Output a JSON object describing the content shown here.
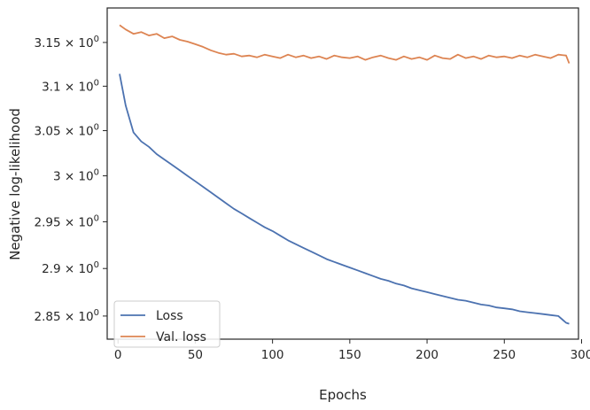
{
  "chart_data": {
    "type": "line",
    "xlabel": "Epochs",
    "ylabel": "Negative log-likelihood",
    "yscale": "log",
    "xlim": [
      -7,
      298
    ],
    "ylim": [
      2.826,
      3.19
    ],
    "grid": false,
    "legend_position": "lower-left",
    "x_ticks": [
      0,
      50,
      100,
      150,
      200,
      250,
      300
    ],
    "x_tick_labels": [
      "0",
      "50",
      "100",
      "150",
      "200",
      "250",
      "300"
    ],
    "y_ticks": [
      2.85,
      2.9,
      2.95,
      3.0,
      3.05,
      3.1,
      3.15
    ],
    "y_tick_mantissas": [
      "2.85",
      "2.9",
      "2.95",
      "3",
      "3.05",
      "3.1",
      "3.15"
    ],
    "y_tick_suffix": "× 10",
    "y_tick_exponent": "0",
    "x": [
      1,
      5,
      10,
      15,
      20,
      25,
      30,
      35,
      40,
      45,
      50,
      55,
      60,
      65,
      70,
      75,
      80,
      85,
      90,
      95,
      100,
      105,
      110,
      115,
      120,
      125,
      130,
      135,
      140,
      145,
      150,
      155,
      160,
      165,
      170,
      175,
      180,
      185,
      190,
      195,
      200,
      205,
      210,
      215,
      220,
      225,
      230,
      235,
      240,
      245,
      250,
      255,
      260,
      265,
      270,
      275,
      280,
      285,
      290,
      292
    ],
    "series": [
      {
        "name": "Loss",
        "color": "#4c72b0",
        "values": [
          3.114,
          3.078,
          3.048,
          3.038,
          3.032,
          3.024,
          3.018,
          3.012,
          3.006,
          3.0,
          2.994,
          2.988,
          2.982,
          2.976,
          2.97,
          2.964,
          2.959,
          2.954,
          2.949,
          2.944,
          2.94,
          2.935,
          2.93,
          2.926,
          2.922,
          2.918,
          2.914,
          2.91,
          2.907,
          2.904,
          2.901,
          2.898,
          2.895,
          2.892,
          2.889,
          2.887,
          2.884,
          2.882,
          2.879,
          2.877,
          2.875,
          2.873,
          2.871,
          2.869,
          2.867,
          2.866,
          2.864,
          2.862,
          2.861,
          2.859,
          2.858,
          2.857,
          2.855,
          2.854,
          2.853,
          2.852,
          2.851,
          2.85,
          2.843,
          2.842
        ]
      },
      {
        "name": "Val. loss",
        "color": "#dd8452",
        "values": [
          3.17,
          3.165,
          3.16,
          3.162,
          3.158,
          3.16,
          3.155,
          3.157,
          3.153,
          3.151,
          3.148,
          3.145,
          3.141,
          3.138,
          3.136,
          3.137,
          3.134,
          3.135,
          3.133,
          3.136,
          3.134,
          3.132,
          3.136,
          3.133,
          3.135,
          3.132,
          3.134,
          3.131,
          3.135,
          3.133,
          3.132,
          3.134,
          3.13,
          3.133,
          3.135,
          3.132,
          3.13,
          3.134,
          3.131,
          3.133,
          3.13,
          3.135,
          3.132,
          3.131,
          3.136,
          3.132,
          3.134,
          3.131,
          3.135,
          3.133,
          3.134,
          3.132,
          3.135,
          3.133,
          3.136,
          3.134,
          3.132,
          3.136,
          3.135,
          3.126
        ]
      }
    ]
  }
}
